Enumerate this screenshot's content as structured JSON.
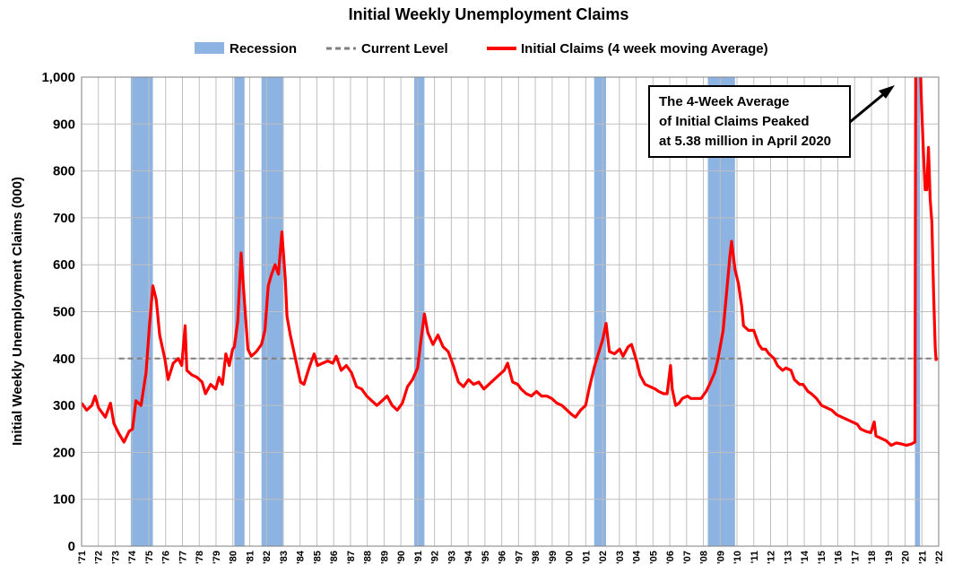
{
  "chart_data": {
    "type": "line",
    "title": "Initial Weekly Unemployment Claims",
    "ylabel": "Initial Weekly Unemployment Claims (000)",
    "xlabel": "",
    "ylim": [
      0,
      1000
    ],
    "xlim": [
      1971,
      2021.5
    ],
    "yticks": [
      0,
      100,
      200,
      300,
      400,
      500,
      600,
      700,
      800,
      900,
      1000
    ],
    "ytick_labels": [
      "0",
      "100",
      "200",
      "300",
      "400",
      "500",
      "600",
      "700",
      "800",
      "900",
      "1,000"
    ],
    "xtick_labels": [
      "'71",
      "'72",
      "'73",
      "'74",
      "'75",
      "'76",
      "'77",
      "'78",
      "'79",
      "'80",
      "'81",
      "'82",
      "'83",
      "'84",
      "'85",
      "'86",
      "'87",
      "'88",
      "'89",
      "'90",
      "'91",
      "'92",
      "'93",
      "'94",
      "'95",
      "'96",
      "'97",
      "'98",
      "'99",
      "'00",
      "'01",
      "'02",
      "'03",
      "'04",
      "'05",
      "'06",
      "'07",
      "'08",
      "'09",
      "'10",
      "'11",
      "'12",
      "'13",
      "'14",
      "'15",
      "'16",
      "'17",
      "'18",
      "'19",
      "'20",
      "'21",
      "'22"
    ],
    "grid": true,
    "legend": {
      "placement": "top",
      "entries": [
        {
          "label": "Recession",
          "color": "#8db3e2",
          "kind": "bar"
        },
        {
          "label": "Current Level",
          "color": "#7f7f7f",
          "kind": "dashed"
        },
        {
          "label": "Initial Claims (4 week moving Average)",
          "color": "#ff0000",
          "kind": "line"
        }
      ]
    },
    "recessions": [
      [
        1973.9,
        1975.2
      ],
      [
        1980.0,
        1980.6
      ],
      [
        1981.6,
        1982.9
      ],
      [
        1990.6,
        1991.2
      ],
      [
        2001.2,
        2001.9
      ],
      [
        2007.9,
        2009.5
      ],
      [
        2020.1,
        2020.4
      ]
    ],
    "current_level": 400,
    "current_level_start": 1973.2,
    "series": [
      {
        "name": "Initial Claims (4 week moving Average)",
        "color": "#ff0000",
        "points": [
          [
            1971.0,
            305
          ],
          [
            1971.3,
            290
          ],
          [
            1971.6,
            300
          ],
          [
            1971.8,
            320
          ],
          [
            1972.0,
            295
          ],
          [
            1972.4,
            275
          ],
          [
            1972.7,
            305
          ],
          [
            1972.9,
            262
          ],
          [
            1973.2,
            240
          ],
          [
            1973.5,
            222
          ],
          [
            1973.8,
            245
          ],
          [
            1974.0,
            250
          ],
          [
            1974.2,
            310
          ],
          [
            1974.5,
            300
          ],
          [
            1974.8,
            370
          ],
          [
            1975.0,
            470
          ],
          [
            1975.2,
            555
          ],
          [
            1975.4,
            525
          ],
          [
            1975.6,
            450
          ],
          [
            1975.9,
            400
          ],
          [
            1976.1,
            355
          ],
          [
            1976.4,
            390
          ],
          [
            1976.7,
            400
          ],
          [
            1976.9,
            385
          ],
          [
            1977.1,
            470
          ],
          [
            1977.2,
            375
          ],
          [
            1977.5,
            365
          ],
          [
            1977.8,
            360
          ],
          [
            1978.1,
            350
          ],
          [
            1978.3,
            325
          ],
          [
            1978.6,
            345
          ],
          [
            1978.9,
            335
          ],
          [
            1979.1,
            360
          ],
          [
            1979.3,
            345
          ],
          [
            1979.5,
            410
          ],
          [
            1979.7,
            385
          ],
          [
            1979.9,
            420
          ],
          [
            1980.0,
            425
          ],
          [
            1980.2,
            480
          ],
          [
            1980.4,
            625
          ],
          [
            1980.6,
            520
          ],
          [
            1980.8,
            420
          ],
          [
            1981.0,
            405
          ],
          [
            1981.3,
            415
          ],
          [
            1981.6,
            430
          ],
          [
            1981.8,
            460
          ],
          [
            1982.0,
            555
          ],
          [
            1982.2,
            580
          ],
          [
            1982.4,
            600
          ],
          [
            1982.6,
            580
          ],
          [
            1982.8,
            670
          ],
          [
            1983.0,
            570
          ],
          [
            1983.1,
            490
          ],
          [
            1983.3,
            450
          ],
          [
            1983.6,
            400
          ],
          [
            1983.9,
            350
          ],
          [
            1984.1,
            345
          ],
          [
            1984.4,
            380
          ],
          [
            1984.7,
            410
          ],
          [
            1984.9,
            385
          ],
          [
            1985.2,
            390
          ],
          [
            1985.5,
            395
          ],
          [
            1985.8,
            390
          ],
          [
            1986.0,
            405
          ],
          [
            1986.3,
            375
          ],
          [
            1986.6,
            385
          ],
          [
            1986.9,
            370
          ],
          [
            1987.2,
            340
          ],
          [
            1987.5,
            335
          ],
          [
            1987.8,
            320
          ],
          [
            1988.1,
            310
          ],
          [
            1988.4,
            300
          ],
          [
            1988.7,
            310
          ],
          [
            1989.0,
            320
          ],
          [
            1989.3,
            300
          ],
          [
            1989.6,
            290
          ],
          [
            1989.9,
            305
          ],
          [
            1990.2,
            340
          ],
          [
            1990.5,
            355
          ],
          [
            1990.8,
            380
          ],
          [
            1991.0,
            440
          ],
          [
            1991.2,
            495
          ],
          [
            1991.4,
            455
          ],
          [
            1991.7,
            430
          ],
          [
            1992.0,
            450
          ],
          [
            1992.3,
            425
          ],
          [
            1992.6,
            415
          ],
          [
            1992.9,
            385
          ],
          [
            1993.2,
            350
          ],
          [
            1993.5,
            340
          ],
          [
            1993.8,
            355
          ],
          [
            1994.1,
            345
          ],
          [
            1994.4,
            350
          ],
          [
            1994.7,
            335
          ],
          [
            1995.0,
            345
          ],
          [
            1995.3,
            355
          ],
          [
            1995.6,
            365
          ],
          [
            1995.9,
            375
          ],
          [
            1996.1,
            390
          ],
          [
            1996.4,
            350
          ],
          [
            1996.7,
            345
          ],
          [
            1996.9,
            335
          ],
          [
            1997.2,
            325
          ],
          [
            1997.5,
            320
          ],
          [
            1997.8,
            330
          ],
          [
            1998.1,
            320
          ],
          [
            1998.4,
            320
          ],
          [
            1998.7,
            315
          ],
          [
            1999.0,
            305
          ],
          [
            1999.3,
            300
          ],
          [
            1999.6,
            290
          ],
          [
            1999.9,
            280
          ],
          [
            2000.1,
            275
          ],
          [
            2000.4,
            290
          ],
          [
            2000.7,
            300
          ],
          [
            2000.9,
            335
          ],
          [
            2001.2,
            380
          ],
          [
            2001.4,
            405
          ],
          [
            2001.7,
            440
          ],
          [
            2001.9,
            475
          ],
          [
            2002.1,
            415
          ],
          [
            2002.4,
            410
          ],
          [
            2002.7,
            420
          ],
          [
            2002.9,
            405
          ],
          [
            2003.2,
            425
          ],
          [
            2003.4,
            430
          ],
          [
            2003.7,
            395
          ],
          [
            2003.9,
            365
          ],
          [
            2004.2,
            345
          ],
          [
            2004.5,
            340
          ],
          [
            2004.8,
            335
          ],
          [
            2005.0,
            330
          ],
          [
            2005.3,
            325
          ],
          [
            2005.5,
            325
          ],
          [
            2005.7,
            385
          ],
          [
            2005.8,
            335
          ],
          [
            2006.0,
            300
          ],
          [
            2006.2,
            305
          ],
          [
            2006.4,
            315
          ],
          [
            2006.7,
            320
          ],
          [
            2006.9,
            315
          ],
          [
            2007.2,
            315
          ],
          [
            2007.5,
            315
          ],
          [
            2007.8,
            330
          ],
          [
            2008.0,
            345
          ],
          [
            2008.3,
            370
          ],
          [
            2008.5,
            400
          ],
          [
            2008.8,
            460
          ],
          [
            2009.0,
            540
          ],
          [
            2009.2,
            620
          ],
          [
            2009.3,
            650
          ],
          [
            2009.5,
            590
          ],
          [
            2009.7,
            560
          ],
          [
            2009.9,
            510
          ],
          [
            2010.0,
            470
          ],
          [
            2010.3,
            460
          ],
          [
            2010.6,
            460
          ],
          [
            2010.9,
            430
          ],
          [
            2011.1,
            420
          ],
          [
            2011.3,
            420
          ],
          [
            2011.5,
            410
          ],
          [
            2011.8,
            400
          ],
          [
            2012.0,
            385
          ],
          [
            2012.3,
            375
          ],
          [
            2012.5,
            380
          ],
          [
            2012.8,
            375
          ],
          [
            2013.0,
            355
          ],
          [
            2013.3,
            345
          ],
          [
            2013.5,
            345
          ],
          [
            2013.8,
            330
          ],
          [
            2014.0,
            325
          ],
          [
            2014.3,
            315
          ],
          [
            2014.6,
            300
          ],
          [
            2014.9,
            295
          ],
          [
            2015.2,
            290
          ],
          [
            2015.5,
            280
          ],
          [
            2015.8,
            275
          ],
          [
            2016.1,
            270
          ],
          [
            2016.4,
            265
          ],
          [
            2016.7,
            260
          ],
          [
            2016.9,
            250
          ],
          [
            2017.2,
            245
          ],
          [
            2017.5,
            242
          ],
          [
            2017.7,
            265
          ],
          [
            2017.8,
            235
          ],
          [
            2018.1,
            230
          ],
          [
            2018.4,
            225
          ],
          [
            2018.7,
            215
          ],
          [
            2019.0,
            220
          ],
          [
            2019.3,
            218
          ],
          [
            2019.6,
            215
          ],
          [
            2019.9,
            218
          ],
          [
            2020.1,
            222
          ],
          [
            2020.15,
            1040
          ],
          [
            2020.3,
            1040
          ],
          [
            2020.4,
            1040
          ],
          [
            2020.5,
            930
          ],
          [
            2020.6,
            840
          ],
          [
            2020.7,
            760
          ],
          [
            2020.8,
            760
          ],
          [
            2020.9,
            850
          ],
          [
            2021.0,
            740
          ],
          [
            2021.1,
            690
          ],
          [
            2021.2,
            540
          ],
          [
            2021.3,
            420
          ],
          [
            2021.35,
            395
          ]
        ]
      }
    ],
    "annotation": {
      "lines": [
        "The 4-Week Average",
        "of Initial Claims Peaked",
        "at 5.38 million in April 2020"
      ]
    }
  }
}
